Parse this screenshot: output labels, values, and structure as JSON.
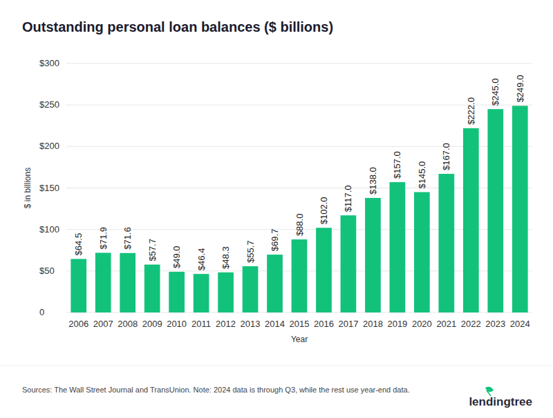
{
  "chart_data": {
    "type": "bar",
    "title": "Outstanding personal loan balances ($ billions)",
    "y_label": "$ in billions",
    "x_label": "Year",
    "source": "Sources: The Wall Street Journal and TransUnion. Note: 2024 data is through Q3, while the rest use year-end data.",
    "logo": "lendingtree",
    "categories": [
      "2006",
      "2007",
      "2008",
      "2009",
      "2010",
      "2011",
      "2012",
      "2013",
      "2014",
      "2015",
      "2016",
      "2017",
      "2018",
      "2019",
      "2020",
      "2021",
      "2022",
      "2023",
      "2024"
    ],
    "values": [
      64.5,
      71.9,
      71.6,
      57.7,
      49.0,
      46.4,
      48.3,
      55.7,
      69.7,
      88.0,
      102.0,
      117.0,
      138.0,
      157.0,
      145.0,
      167.0,
      222.0,
      245.0,
      249.0
    ],
    "value_labels": [
      "$64.5",
      "$71.9",
      "$71.6",
      "$57.7",
      "$49.0",
      "$46.4",
      "$48.3",
      "$55.7",
      "$69.7",
      "$88.0",
      "$102.0",
      "$117.0",
      "$138.0",
      "$157.0",
      "$145.0",
      "$167.0",
      "$222.0",
      "$245.0",
      "$249.0"
    ],
    "color": "#12c27b",
    "ylim": [
      0,
      300
    ],
    "yticks": [
      0,
      {
        "value": 50,
        "label": "$50"
      },
      {
        "value": 100,
        "label": "$100"
      },
      {
        "value": 150,
        "label": "$150"
      },
      {
        "value": 200,
        "label": "$200"
      },
      {
        "value": 250,
        "label": "$250"
      },
      {
        "value": 300,
        "label": "$300"
      }
    ],
    "grid": true,
    "data_labels": true
  }
}
